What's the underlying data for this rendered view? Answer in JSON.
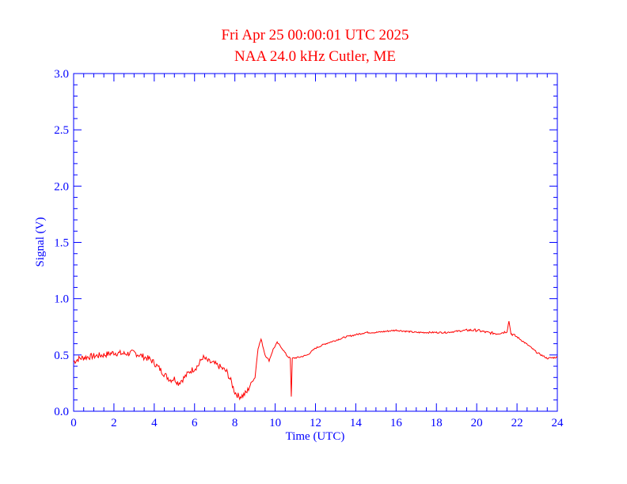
{
  "chart_data": {
    "type": "line",
    "title": "Fri Apr 25 00:00:01 UTC 2025",
    "subtitle": "NAA 24.0 kHz Cutler, ME",
    "xlabel": "Time (UTC)",
    "ylabel": "Signal (V)",
    "xlim": [
      0,
      24
    ],
    "ylim": [
      0,
      3
    ],
    "x_ticks": [
      "0",
      "2",
      "4",
      "6",
      "8",
      "10",
      "12",
      "14",
      "16",
      "18",
      "20",
      "22",
      "24"
    ],
    "y_ticks": [
      "0.0",
      "0.5",
      "1.0",
      "1.5",
      "2.0",
      "2.5",
      "3.0"
    ],
    "grid": false,
    "colors": {
      "axis": "#0000ff",
      "series": "#ff0000",
      "title": "#ff0000"
    },
    "series": [
      {
        "x": [
          0.0,
          0.3,
          0.6,
          1.0,
          1.5,
          2.0,
          2.5,
          3.0,
          3.4,
          3.8,
          4.0,
          4.2,
          4.4,
          4.6,
          4.8,
          5.0,
          5.2,
          5.5,
          5.8,
          6.0,
          6.2,
          6.4,
          6.7,
          7.0,
          7.3,
          7.6,
          7.8,
          8.0,
          8.2,
          8.4,
          8.6,
          8.8,
          9.0,
          9.15,
          9.3,
          9.5,
          9.7,
          9.9,
          10.1,
          10.3,
          10.6,
          10.75,
          10.8,
          10.85,
          11.2,
          11.6,
          12.0,
          12.5,
          13.0,
          13.5,
          14.0,
          14.5,
          15.0,
          15.5,
          16.0,
          16.5,
          17.0,
          17.5,
          18.0,
          18.5,
          19.0,
          19.5,
          20.0,
          20.5,
          21.0,
          21.3,
          21.5,
          21.6,
          21.7,
          21.8,
          22.0,
          22.3,
          22.6,
          23.0,
          23.5,
          24.0
        ],
        "values": [
          0.44,
          0.47,
          0.48,
          0.49,
          0.5,
          0.52,
          0.51,
          0.52,
          0.49,
          0.46,
          0.43,
          0.39,
          0.35,
          0.31,
          0.28,
          0.29,
          0.25,
          0.3,
          0.36,
          0.38,
          0.41,
          0.48,
          0.44,
          0.42,
          0.39,
          0.35,
          0.27,
          0.17,
          0.13,
          0.14,
          0.17,
          0.25,
          0.3,
          0.56,
          0.64,
          0.5,
          0.45,
          0.55,
          0.61,
          0.57,
          0.49,
          0.47,
          0.13,
          0.47,
          0.48,
          0.5,
          0.56,
          0.6,
          0.63,
          0.66,
          0.68,
          0.7,
          0.7,
          0.71,
          0.72,
          0.71,
          0.7,
          0.7,
          0.7,
          0.7,
          0.71,
          0.72,
          0.72,
          0.7,
          0.69,
          0.7,
          0.71,
          0.8,
          0.69,
          0.68,
          0.66,
          0.62,
          0.58,
          0.52,
          0.47,
          0.48
        ]
      }
    ]
  }
}
